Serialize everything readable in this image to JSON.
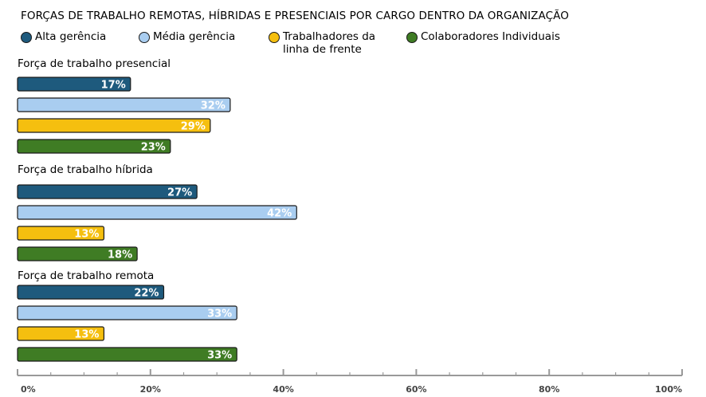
{
  "chart_data": {
    "type": "bar",
    "orientation": "horizontal",
    "title": "FORÇAS DE TRABALHO REMOTAS, HÍBRIDAS E PRESENCIAIS POR CARGO DENTRO DA ORGANIZAÇÃO",
    "legend": [
      {
        "name": "Alta gerência",
        "color": "#1e5a7d"
      },
      {
        "name": "Média gerência",
        "color": "#a9cdf0"
      },
      {
        "name": "Trabalhadores da linha de frente",
        "line1": "Trabalhadores da",
        "line2": "linha de frente",
        "color": "#f5bf0f"
      },
      {
        "name": "Colaboradores Individuais",
        "color": "#3f7c24"
      }
    ],
    "groups": [
      {
        "label": "Força de trabalho presencial",
        "values": [
          17,
          32,
          29,
          23
        ],
        "value_labels": [
          "17%",
          "32%",
          "29%",
          "23%"
        ]
      },
      {
        "label": "Força de trabalho híbrida",
        "values": [
          27,
          42,
          13,
          18
        ],
        "value_labels": [
          "27%",
          "42%",
          "13%",
          "18%"
        ]
      },
      {
        "label": "Força de trabalho remota",
        "values": [
          22,
          33,
          13,
          33
        ],
        "value_labels": [
          "22%",
          "33%",
          "13%",
          "33%"
        ]
      }
    ],
    "x_ticks": [
      "0%",
      "20%",
      "40%",
      "60%",
      "80%",
      "100%"
    ],
    "xlim": [
      0,
      100
    ],
    "legend_position": "top",
    "grid": false
  }
}
